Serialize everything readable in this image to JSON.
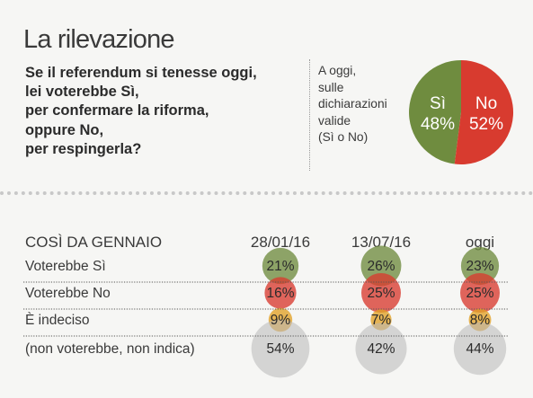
{
  "title": "La rilevazione",
  "question": [
    "Se il referendum si tenesse oggi,",
    "lei voterebbe Sì,",
    "per confermare la riforma,",
    "oppure No,",
    "per respingerla?"
  ],
  "note": [
    "A oggi,",
    "sulle",
    "dichiarazioni",
    "valide",
    "(Sì o No)"
  ],
  "colors": {
    "si": "#6f8c3f",
    "no": "#d83b2f",
    "indeciso": "#e2a126",
    "non_vota": "#b8b8b8"
  },
  "chart_data": [
    {
      "type": "pie",
      "categories": [
        "Sì",
        "No"
      ],
      "values": [
        48,
        52
      ],
      "labels": [
        "Sì",
        "No"
      ],
      "value_labels": [
        "48%",
        "52%"
      ]
    },
    {
      "type": "table",
      "header": "COSÌ DA GENNAIO",
      "columns": [
        "28/01/16",
        "13/07/16",
        "oggi"
      ],
      "rows": [
        {
          "label": "Voterebbe Sì",
          "values": [
            21,
            26,
            23
          ],
          "text": [
            "21%",
            "26%",
            "23%"
          ],
          "color": "#6f8c3f"
        },
        {
          "label": "Voterebbe No",
          "values": [
            16,
            25,
            25
          ],
          "text": [
            "16%",
            "25%",
            "25%"
          ],
          "color": "#d83b2f"
        },
        {
          "label": "È indeciso",
          "values": [
            9,
            7,
            8
          ],
          "text": [
            "9%",
            "7%",
            "8%"
          ],
          "color": "#e2a126"
        },
        {
          "label": "(non voterebbe, non indica)",
          "values": [
            54,
            42,
            44
          ],
          "text": [
            "54%",
            "42%",
            "44%"
          ],
          "color": "#b8b8b8"
        }
      ]
    }
  ]
}
